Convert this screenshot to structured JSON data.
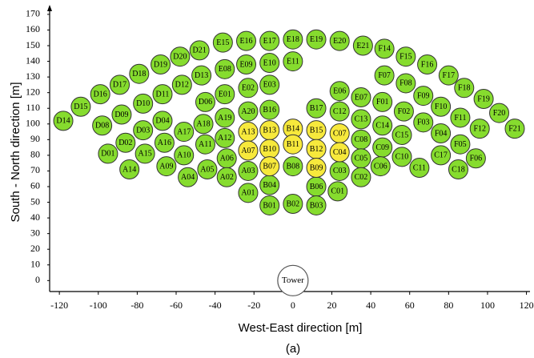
{
  "chart_data": {
    "type": "scatter",
    "xlabel": "West-East direction [m]",
    "ylabel": "South - North direction [m]",
    "caption": "(a)",
    "xlim": [
      -125,
      121
    ],
    "ylim": [
      -7,
      172
    ],
    "xticks": [
      -120,
      -100,
      -80,
      -60,
      -40,
      -20,
      0,
      20,
      40,
      60,
      80,
      100,
      120
    ],
    "yticks": [
      0,
      10,
      20,
      30,
      40,
      50,
      60,
      70,
      80,
      90,
      100,
      110,
      120,
      130,
      140,
      150,
      160,
      170
    ],
    "grid": false,
    "series": [
      {
        "color": "#86dc2e",
        "labels": [
          "E15",
          "E16",
          "E17",
          "E18",
          "E19",
          "E20",
          "E21",
          "F14",
          "F15",
          "F16",
          "F17",
          "F18",
          "F19",
          "F20",
          "F21",
          "D21",
          "D20",
          "D19",
          "D18",
          "D17",
          "D16",
          "D15",
          "D14",
          "E08",
          "E09",
          "E10",
          "E11",
          "D13",
          "D12",
          "D11",
          "D10",
          "D09",
          "D08",
          "E02",
          "E03",
          "E01",
          "D06",
          "D04",
          "D03",
          "D02",
          "D01",
          "A20",
          "B16",
          "B17",
          "C12",
          "E06",
          "E07",
          "F01",
          "F02",
          "F07",
          "F08",
          "F09",
          "F10",
          "F03",
          "F11",
          "F04",
          "F12",
          "F05",
          "F06",
          "C13",
          "C14",
          "C15",
          "C08",
          "C09",
          "C10",
          "C11",
          "C17",
          "C18",
          "A19",
          "A18",
          "A17",
          "A16",
          "A15",
          "A14",
          "A12",
          "A11",
          "A10",
          "A09",
          "A05",
          "A04",
          "A06",
          "A02",
          "A03",
          "B08",
          "C03",
          "C05",
          "C06",
          "C02",
          "B04",
          "B06",
          "A01",
          "C01",
          "B01",
          "B02",
          "B03"
        ],
        "x": [
          -36,
          -24,
          -12,
          0,
          12,
          24,
          36,
          47,
          58,
          69,
          80,
          88,
          98,
          106,
          114,
          -48,
          -58,
          -68,
          -79,
          -89,
          -99,
          -109,
          -118,
          -35,
          -24,
          -12,
          0,
          -47,
          -57,
          -67,
          -77,
          -88,
          -98,
          -23,
          -12,
          -35,
          -45,
          -67,
          -77,
          -86,
          -95,
          -23,
          -12,
          12,
          24,
          24,
          35,
          46,
          57,
          47,
          58,
          67,
          76,
          67,
          86,
          76,
          96,
          86,
          94,
          35,
          46,
          56,
          35,
          46,
          56,
          65,
          76,
          85,
          -35,
          -46,
          -56,
          -66,
          -76,
          -84,
          -35,
          -45,
          -56,
          -65,
          -44,
          -54,
          -34,
          -34,
          -23,
          0,
          24,
          35,
          45,
          35,
          -12,
          12,
          -23,
          23,
          -12,
          0,
          12
        ],
        "values": [
          152,
          153,
          153,
          154,
          154,
          153,
          150,
          148,
          143,
          138,
          131,
          123,
          116,
          107,
          97,
          147,
          143,
          138,
          132,
          125,
          119,
          111,
          102,
          135,
          138,
          139,
          140,
          131,
          125,
          119,
          113,
          106,
          99,
          123,
          125,
          119,
          114,
          102,
          96,
          88,
          81,
          108,
          109,
          110,
          108,
          121,
          117,
          114,
          108,
          131,
          126,
          118,
          111,
          101,
          104,
          94,
          97,
          87,
          78,
          103,
          99,
          93,
          90,
          85,
          79,
          72,
          80,
          71,
          104,
          100,
          95,
          88,
          81,
          71,
          91,
          87,
          80,
          73,
          71,
          66,
          78,
          66,
          70,
          73,
          70,
          78,
          73,
          66,
          61,
          60,
          56,
          57,
          48,
          49,
          48
        ]
      },
      {
        "color": "#f7e93c",
        "labels": [
          "A13",
          "B13",
          "B14",
          "B15",
          "C07",
          "A07",
          "B10",
          "B11",
          "B12",
          "C04",
          "B07",
          "B09"
        ],
        "x": [
          -23,
          -12,
          0,
          12,
          24,
          -23,
          -12,
          0,
          12,
          24,
          -12,
          12
        ],
        "values": [
          95,
          96,
          97,
          96,
          94,
          83,
          84,
          87,
          84,
          82,
          73,
          72
        ]
      }
    ],
    "annotations": [
      {
        "text": "Tower",
        "x": 0,
        "y": 0
      }
    ]
  }
}
